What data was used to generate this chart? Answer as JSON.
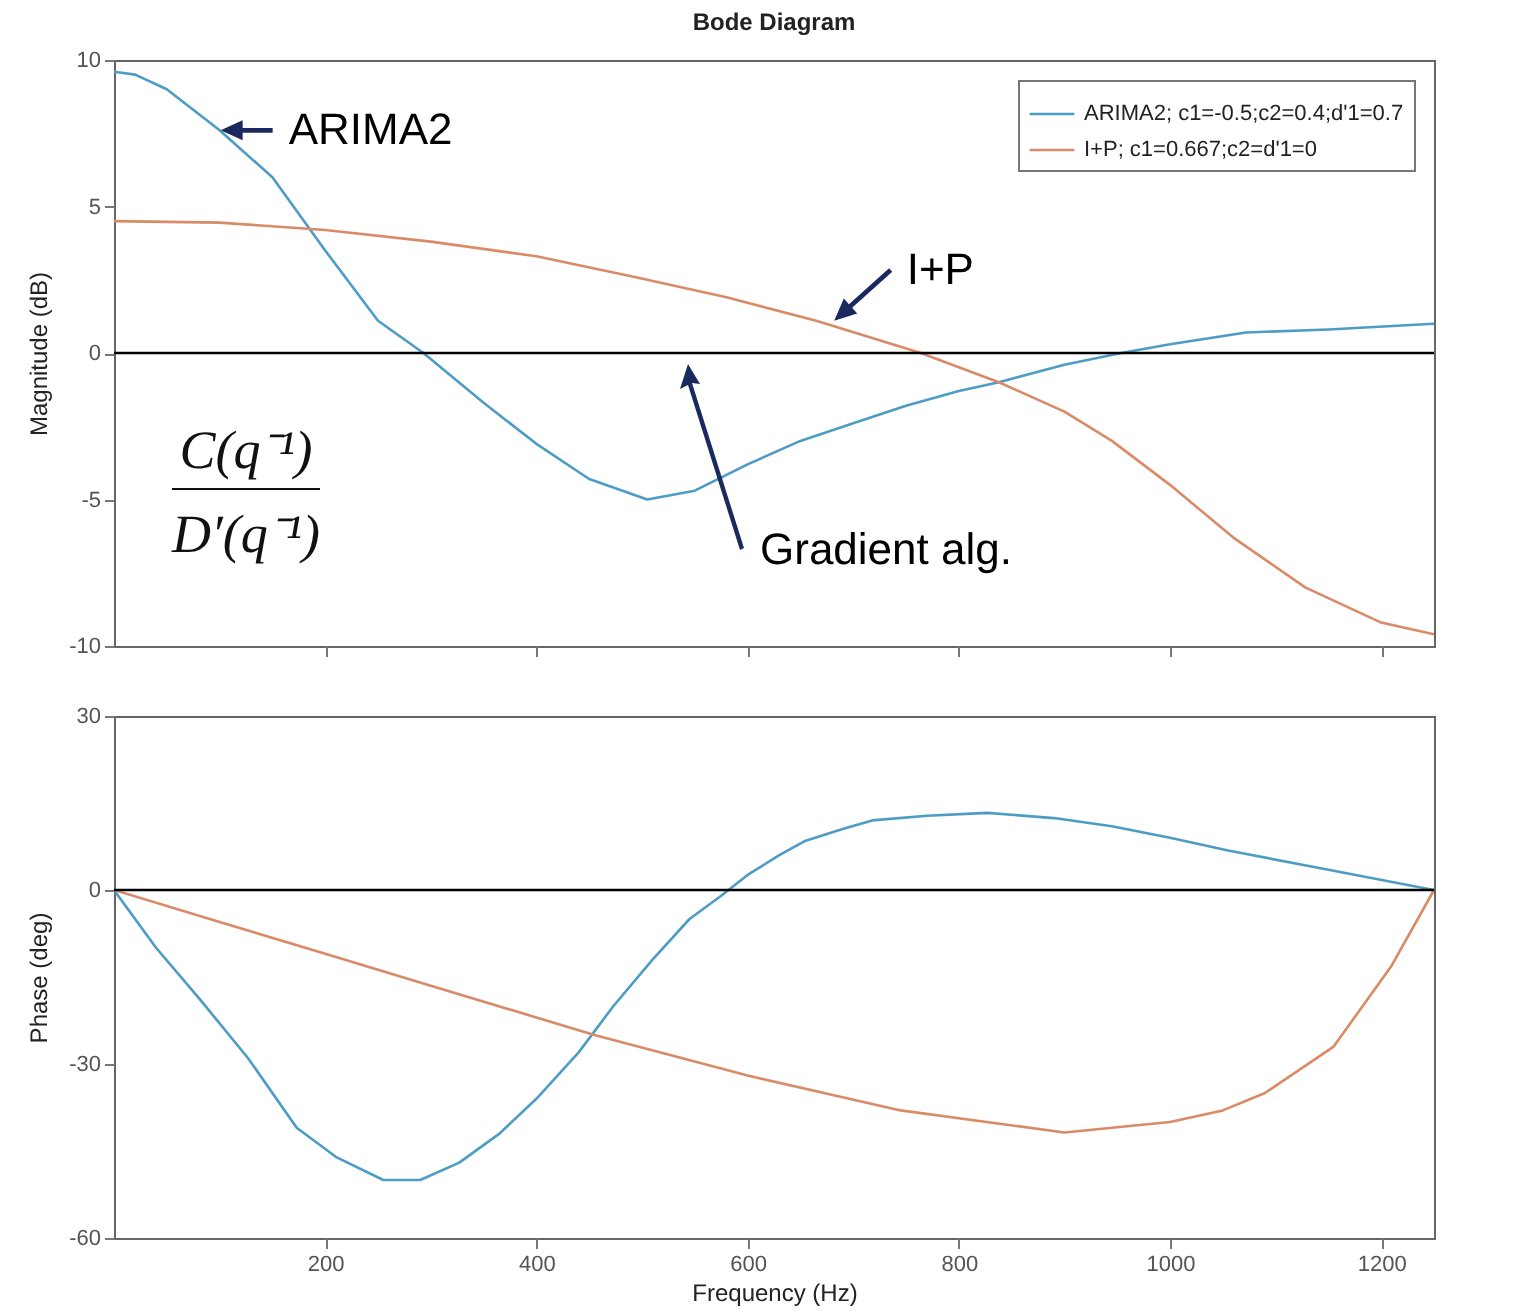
{
  "chart_data": [
    {
      "type": "line",
      "title": "Bode Diagram",
      "ylabel": "Magnitude (dB)",
      "xlim": [
        0,
        1250
      ],
      "xticks": [
        200,
        400,
        600,
        800,
        1000,
        1200
      ],
      "ylim": [
        -10,
        10
      ],
      "yticks": [
        -10,
        -5,
        0,
        5,
        10
      ],
      "tick_labels": "y",
      "grid": false,
      "legend": "top right",
      "series": [
        {
          "name": "ARIMA2; c1=-0.5;c2=0.4;d'1=0.7",
          "color": "#4d9cc6",
          "x": [
            0,
            20,
            50,
            100,
            150,
            200,
            250,
            293,
            350,
            400,
            450,
            505,
            550,
            600,
            650,
            700,
            750,
            800,
            838,
            900,
            954,
            1000,
            1072,
            1150,
            1250
          ],
          "values": [
            9.6,
            9.5,
            9.0,
            7.6,
            6.0,
            3.5,
            1.1,
            0,
            -1.7,
            -3.1,
            -4.3,
            -5.0,
            -4.7,
            -3.8,
            -3.0,
            -2.4,
            -1.8,
            -1.3,
            -1.0,
            -0.4,
            0,
            0.3,
            0.7,
            0.8,
            1.0
          ]
        },
        {
          "name": "I+P; c1=0.667;c2=d'1=0",
          "color": "#d98a66",
          "x": [
            0,
            100,
            200,
            300,
            400,
            492,
            580,
            665,
            764,
            838,
            900,
            945,
            1000,
            1060,
            1128,
            1200,
            1250
          ],
          "values": [
            4.5,
            4.45,
            4.2,
            3.8,
            3.3,
            2.6,
            1.9,
            1.1,
            0,
            -1.0,
            -2.0,
            -3.0,
            -4.5,
            -6.3,
            -8.0,
            -9.2,
            -9.6
          ]
        }
      ],
      "ref_lines": [
        {
          "axis": "y",
          "value": 0,
          "color": "#000000"
        }
      ],
      "annotations": [
        {
          "text": "ARIMA2",
          "x": 101,
          "y": 7.6
        },
        {
          "text": "I+P",
          "x": 682,
          "y": 1.1
        },
        "Gradient alg.",
        "C(q⁻¹)",
        "D′(q⁻¹)"
      ]
    },
    {
      "type": "line",
      "xlabel": "Frequency  (Hz)",
      "ylabel": "Phase (deg)",
      "xlim": [
        0,
        1250
      ],
      "xticks": [
        200,
        400,
        600,
        800,
        1000,
        1200
      ],
      "ylim": [
        -60,
        30
      ],
      "yticks": [
        -60,
        -30,
        0,
        30
      ],
      "grid": false,
      "series": [
        {
          "color": "#4d9cc6",
          "x": [
            0,
            40,
            82,
            127,
            173,
            210,
            255,
            290,
            327,
            365,
            400,
            440,
            473,
            510,
            545,
            575,
            600,
            630,
            655,
            690,
            718,
            770,
            827,
            890,
            945,
            1000,
            1055,
            1150,
            1250
          ],
          "values": [
            0,
            -10,
            -19,
            -29,
            -41,
            -46,
            -50,
            -50,
            -47,
            -42,
            -36,
            -28,
            -20,
            -12,
            -5,
            -1,
            2.6,
            6,
            8.5,
            10.5,
            12,
            12.8,
            13.3,
            12.4,
            11,
            9,
            6.8,
            3.5,
            0
          ]
        },
        {
          "color": "#d98a66",
          "x": [
            0,
            100,
            200,
            300,
            455,
            600,
            745,
            900,
            1000,
            1050,
            1090,
            1155,
            1210,
            1250
          ],
          "values": [
            0,
            -5.5,
            -11,
            -16.5,
            -25,
            -32,
            -38,
            -41.8,
            -40,
            -38,
            -35,
            -27,
            -13,
            0
          ]
        }
      ],
      "ref_lines": [
        {
          "axis": "y",
          "value": 0,
          "color": "#000000"
        }
      ]
    }
  ]
}
